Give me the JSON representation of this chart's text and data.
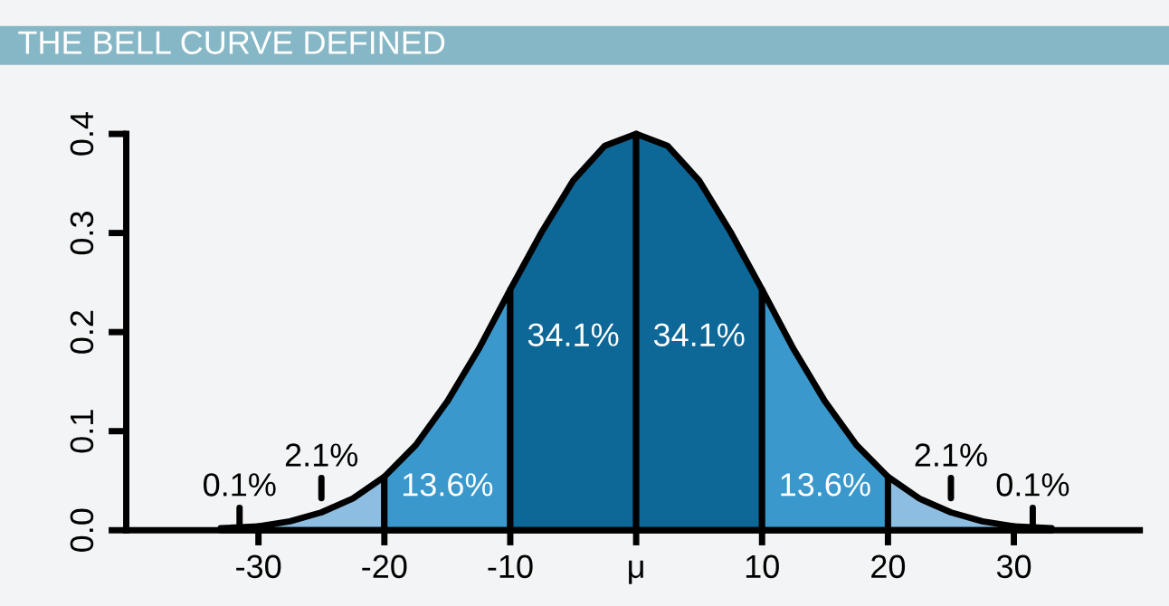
{
  "chart_data": {
    "type": "area",
    "title": "THE BELL CURVE DEFINED",
    "series": [
      {
        "color": "#8dbde0",
        "x": [
          -33,
          -31.5,
          -30
        ],
        "values": [
          0.002,
          0.003,
          0.004
        ]
      },
      {
        "color": "#8dbde0",
        "x": [
          -30,
          -27.5,
          -25,
          -22.5,
          -20
        ],
        "values": [
          0.004,
          0.009,
          0.018,
          0.032,
          0.054
        ]
      },
      {
        "color": "#3a98cc",
        "x": [
          -20,
          -17.5,
          -15,
          -12.5,
          -10
        ],
        "values": [
          0.054,
          0.086,
          0.13,
          0.183,
          0.243
        ]
      },
      {
        "color": "#0d6797",
        "x": [
          -10,
          -7.5,
          -5,
          -2.5,
          0
        ],
        "values": [
          0.243,
          0.301,
          0.353,
          0.388,
          0.4
        ]
      },
      {
        "color": "#0d6797",
        "x": [
          0,
          2.5,
          5,
          7.5,
          10
        ],
        "values": [
          0.4,
          0.388,
          0.353,
          0.301,
          0.243
        ]
      },
      {
        "color": "#3a98cc",
        "x": [
          10,
          12.5,
          15,
          17.5,
          20
        ],
        "values": [
          0.243,
          0.183,
          0.13,
          0.086,
          0.054
        ]
      },
      {
        "color": "#8dbde0",
        "x": [
          20,
          22.5,
          25,
          27.5,
          30
        ],
        "values": [
          0.054,
          0.032,
          0.018,
          0.009,
          0.004
        ]
      },
      {
        "color": "#8dbde0",
        "x": [
          30,
          31.5,
          33
        ],
        "values": [
          0.004,
          0.003,
          0.002
        ]
      }
    ],
    "xlim": [
      -40.5,
      40
    ],
    "ylim": [
      0,
      0.4
    ],
    "xticks": [
      -30,
      -20,
      -10,
      {
        "value": 0,
        "label": "μ"
      },
      10,
      20,
      30
    ],
    "yticks": [
      {
        "value": 0,
        "label": "0.0"
      },
      0.1,
      0.2,
      0.3,
      0.4
    ],
    "grid": false,
    "legend": false,
    "annotations": [
      "0.1%",
      "2.1%",
      "13.6%",
      "34.1%",
      "34.1%",
      "13.6%",
      "2.1%",
      "0.1%"
    ]
  }
}
